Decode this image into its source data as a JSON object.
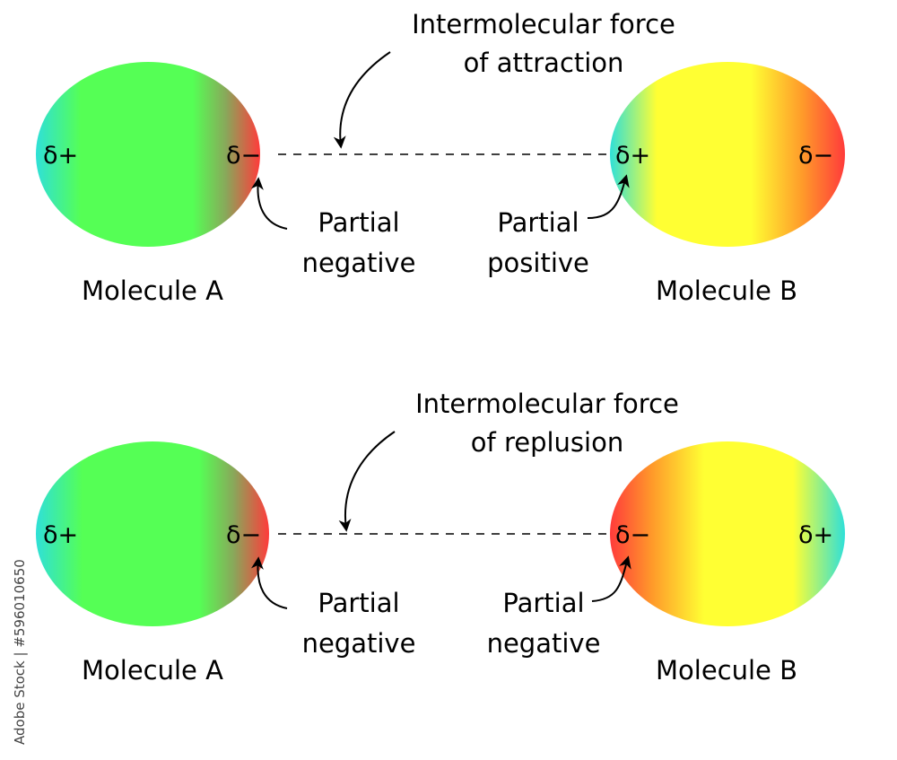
{
  "colors": {
    "positive": "#2fe0d8",
    "molecule_a": "#55ff55",
    "molecule_b": "#ffff33",
    "negative": "#ff3b3b",
    "orange": "#ff9a2a"
  },
  "panels": [
    {
      "force_label_1": "Intermolecular force",
      "force_label_2": "of attraction",
      "molecule_a": {
        "name": "Molecule A",
        "left_charge": "δ+",
        "right_charge": "δ−"
      },
      "molecule_b": {
        "name": "Molecule B",
        "left_charge": "δ+",
        "right_charge": "δ−"
      },
      "note_a_1": "Partial",
      "note_a_2": "negative",
      "note_b_1": "Partial",
      "note_b_2": "positive"
    },
    {
      "force_label_1": "Intermolecular force",
      "force_label_2": "of replusion",
      "molecule_a": {
        "name": "Molecule A",
        "left_charge": "δ+",
        "right_charge": "δ−"
      },
      "molecule_b": {
        "name": "Molecule B",
        "left_charge": "δ−",
        "right_charge": "δ+"
      },
      "note_a_1": "Partial",
      "note_a_2": "negative",
      "note_b_1": "Partial",
      "note_b_2": "negative"
    }
  ],
  "watermark": "Adobe Stock | #596010650"
}
